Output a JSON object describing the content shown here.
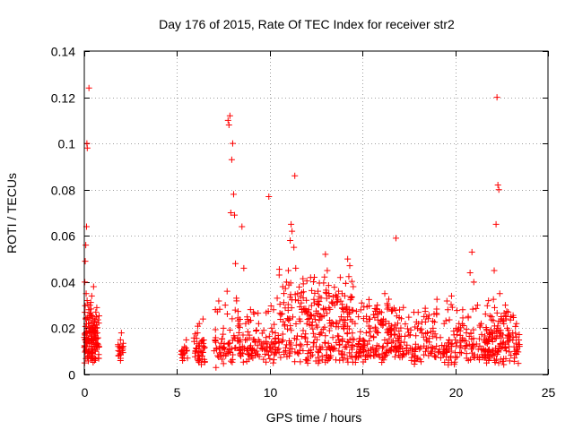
{
  "chart_data": {
    "type": "scatter",
    "title": "Day 176 of 2015, Rate Of TEC Index for receiver str2",
    "xlabel": "GPS time / hours",
    "ylabel": "ROTI / TECUs",
    "xlim": [
      0,
      25
    ],
    "ylim": [
      0,
      0.14
    ],
    "xticks": [
      0,
      5,
      10,
      15,
      20,
      25
    ],
    "xtick_labels": [
      "0",
      "5",
      "10",
      "15",
      "20",
      "25"
    ],
    "yticks": [
      0,
      0.02,
      0.04,
      0.06,
      0.08,
      0.1,
      0.12,
      0.14
    ],
    "ytick_labels": [
      "0",
      "0.02",
      "0.04",
      "0.06",
      "0.08",
      "0.1",
      "0.12",
      "0.14"
    ],
    "grid": true,
    "marker": "+",
    "color": "#ff0000",
    "series": [
      {
        "name": "str2",
        "points": [
          [
            0.02,
            0.005
          ],
          [
            0.04,
            0.012
          ],
          [
            0.06,
            0.018
          ],
          [
            0.08,
            0.024
          ],
          [
            0.1,
            0.035
          ],
          [
            0.12,
            0.064
          ],
          [
            0.14,
            0.1
          ],
          [
            0.16,
            0.098
          ],
          [
            0.18,
            0.015
          ],
          [
            0.2,
            0.008
          ],
          [
            0.22,
            0.022
          ],
          [
            0.24,
            0.028
          ],
          [
            0.25,
            0.124
          ],
          [
            0.28,
            0.014
          ],
          [
            0.3,
            0.03
          ],
          [
            0.32,
            0.019
          ],
          [
            0.35,
            0.026
          ],
          [
            0.38,
            0.011
          ],
          [
            0.4,
            0.034
          ],
          [
            0.42,
            0.017
          ],
          [
            0.45,
            0.009
          ],
          [
            0.48,
            0.021
          ],
          [
            0.5,
            0.038
          ],
          [
            0.52,
            0.013
          ],
          [
            0.55,
            0.023
          ],
          [
            0.58,
            0.016
          ],
          [
            0.6,
            0.01
          ],
          [
            0.62,
            0.027
          ],
          [
            0.65,
            0.012
          ],
          [
            0.7,
            0.018
          ],
          [
            0.05,
            0.049
          ],
          [
            0.08,
            0.056
          ],
          [
            0.03,
            0.04
          ],
          [
            0.15,
            0.032
          ],
          [
            0.33,
            0.007
          ],
          [
            1.85,
            0.008
          ],
          [
            1.9,
            0.012
          ],
          [
            1.95,
            0.015
          ],
          [
            2.0,
            0.018
          ],
          [
            1.9,
            0.01
          ],
          [
            1.95,
            0.006
          ],
          [
            5.3,
            0.006
          ],
          [
            5.4,
            0.012
          ],
          [
            5.5,
            0.015
          ],
          [
            6.0,
            0.01
          ],
          [
            6.1,
            0.018
          ],
          [
            6.2,
            0.022
          ],
          [
            6.3,
            0.014
          ],
          [
            6.35,
            0.008
          ],
          [
            6.4,
            0.024
          ],
          [
            7.1,
            0.003
          ],
          [
            7.3,
            0.012
          ],
          [
            7.5,
            0.02
          ],
          [
            7.6,
            0.03
          ],
          [
            7.7,
            0.036
          ],
          [
            7.75,
            0.11
          ],
          [
            7.8,
            0.108
          ],
          [
            7.85,
            0.112
          ],
          [
            7.9,
            0.07
          ],
          [
            7.95,
            0.093
          ],
          [
            8.0,
            0.1
          ],
          [
            8.05,
            0.078
          ],
          [
            8.1,
            0.069
          ],
          [
            8.15,
            0.048
          ],
          [
            8.2,
            0.033
          ],
          [
            8.3,
            0.021
          ],
          [
            8.4,
            0.014
          ],
          [
            8.5,
            0.064
          ],
          [
            8.6,
            0.046
          ],
          [
            8.7,
            0.022
          ],
          [
            8.8,
            0.011
          ],
          [
            8.9,
            0.017
          ],
          [
            9.0,
            0.009
          ],
          [
            9.2,
            0.014
          ],
          [
            9.4,
            0.022
          ],
          [
            9.6,
            0.011
          ],
          [
            9.8,
            0.016
          ],
          [
            9.95,
            0.077
          ],
          [
            10.0,
            0.012
          ],
          [
            10.1,
            0.02
          ],
          [
            10.2,
            0.028
          ],
          [
            10.3,
            0.018
          ],
          [
            10.4,
            0.033
          ],
          [
            10.5,
            0.014
          ],
          [
            10.6,
            0.026
          ],
          [
            10.7,
            0.038
          ],
          [
            10.8,
            0.021
          ],
          [
            10.9,
            0.04
          ],
          [
            11.0,
            0.045
          ],
          [
            11.1,
            0.058
          ],
          [
            11.15,
            0.065
          ],
          [
            11.2,
            0.062
          ],
          [
            11.3,
            0.055
          ],
          [
            11.35,
            0.086
          ],
          [
            11.4,
            0.046
          ],
          [
            11.5,
            0.035
          ],
          [
            11.6,
            0.024
          ],
          [
            11.7,
            0.031
          ],
          [
            11.8,
            0.019
          ],
          [
            11.9,
            0.027
          ],
          [
            12.0,
            0.022
          ],
          [
            12.1,
            0.028
          ],
          [
            12.2,
            0.042
          ],
          [
            12.4,
            0.031
          ],
          [
            12.5,
            0.012
          ],
          [
            12.6,
            0.036
          ],
          [
            12.7,
            0.025
          ],
          [
            12.8,
            0.018
          ],
          [
            12.9,
            0.028
          ],
          [
            13.0,
            0.052
          ],
          [
            13.1,
            0.045
          ],
          [
            13.2,
            0.034
          ],
          [
            13.3,
            0.021
          ],
          [
            13.4,
            0.016
          ],
          [
            13.5,
            0.03
          ],
          [
            13.6,
            0.022
          ],
          [
            13.7,
            0.015
          ],
          [
            13.8,
            0.042
          ],
          [
            13.9,
            0.035
          ],
          [
            14.0,
            0.02
          ],
          [
            14.1,
            0.012
          ],
          [
            14.2,
            0.05
          ],
          [
            14.3,
            0.028
          ],
          [
            14.5,
            0.038
          ],
          [
            14.6,
            0.022
          ],
          [
            14.8,
            0.013
          ],
          [
            15.0,
            0.012
          ],
          [
            15.2,
            0.018
          ],
          [
            15.4,
            0.024
          ],
          [
            15.6,
            0.016
          ],
          [
            15.8,
            0.03
          ],
          [
            16.0,
            0.022
          ],
          [
            16.2,
            0.035
          ],
          [
            16.4,
            0.018
          ],
          [
            16.6,
            0.028
          ],
          [
            16.8,
            0.059
          ],
          [
            17.0,
            0.012
          ],
          [
            17.2,
            0.009
          ],
          [
            17.8,
            0.006
          ],
          [
            18.0,
            0.012
          ],
          [
            18.2,
            0.018
          ],
          [
            18.4,
            0.01
          ],
          [
            18.6,
            0.014
          ],
          [
            18.8,
            0.02
          ],
          [
            19.0,
            0.026
          ],
          [
            19.2,
            0.016
          ],
          [
            19.4,
            0.022
          ],
          [
            19.6,
            0.028
          ],
          [
            19.8,
            0.034
          ],
          [
            20.0,
            0.015
          ],
          [
            20.2,
            0.022
          ],
          [
            20.4,
            0.028
          ],
          [
            20.6,
            0.018
          ],
          [
            20.8,
            0.044
          ],
          [
            20.9,
            0.053
          ],
          [
            21.0,
            0.04
          ],
          [
            21.2,
            0.03
          ],
          [
            21.4,
            0.022
          ],
          [
            21.6,
            0.014
          ],
          [
            21.8,
            0.006
          ],
          [
            22.0,
            0.018
          ],
          [
            22.1,
            0.045
          ],
          [
            22.2,
            0.065
          ],
          [
            22.25,
            0.12
          ],
          [
            22.3,
            0.082
          ],
          [
            22.35,
            0.08
          ],
          [
            22.4,
            0.035
          ],
          [
            22.5,
            0.024
          ],
          [
            22.6,
            0.014
          ],
          [
            22.7,
            0.03
          ],
          [
            22.8,
            0.02
          ],
          [
            22.9,
            0.012
          ],
          [
            23.0,
            0.025
          ],
          [
            23.1,
            0.018
          ],
          [
            23.2,
            0.01
          ],
          [
            23.3,
            0.022
          ],
          [
            23.4,
            0.013
          ]
        ],
        "clusters": [
          {
            "x": [
              0.0,
              0.8
            ],
            "y": [
              0.005,
              0.032
            ],
            "n": 120
          },
          {
            "x": [
              1.8,
              2.1
            ],
            "y": [
              0.006,
              0.016
            ],
            "n": 15
          },
          {
            "x": [
              5.2,
              5.6
            ],
            "y": [
              0.005,
              0.016
            ],
            "n": 15
          },
          {
            "x": [
              5.9,
              6.5
            ],
            "y": [
              0.004,
              0.022
            ],
            "n": 40
          },
          {
            "x": [
              7.0,
              23.5
            ],
            "y": [
              0.004,
              0.022
            ],
            "n": 650
          },
          {
            "x": [
              7.0,
              23.5
            ],
            "y": [
              0.018,
              0.034
            ],
            "n": 140
          },
          {
            "x": [
              10.5,
              14.5
            ],
            "y": [
              0.02,
              0.048
            ],
            "n": 120
          },
          {
            "x": [
              15.5,
              17.0
            ],
            "y": [
              0.015,
              0.035
            ],
            "n": 40
          },
          {
            "x": [
              21.8,
              23.0
            ],
            "y": [
              0.01,
              0.032
            ],
            "n": 40
          }
        ]
      }
    ]
  }
}
